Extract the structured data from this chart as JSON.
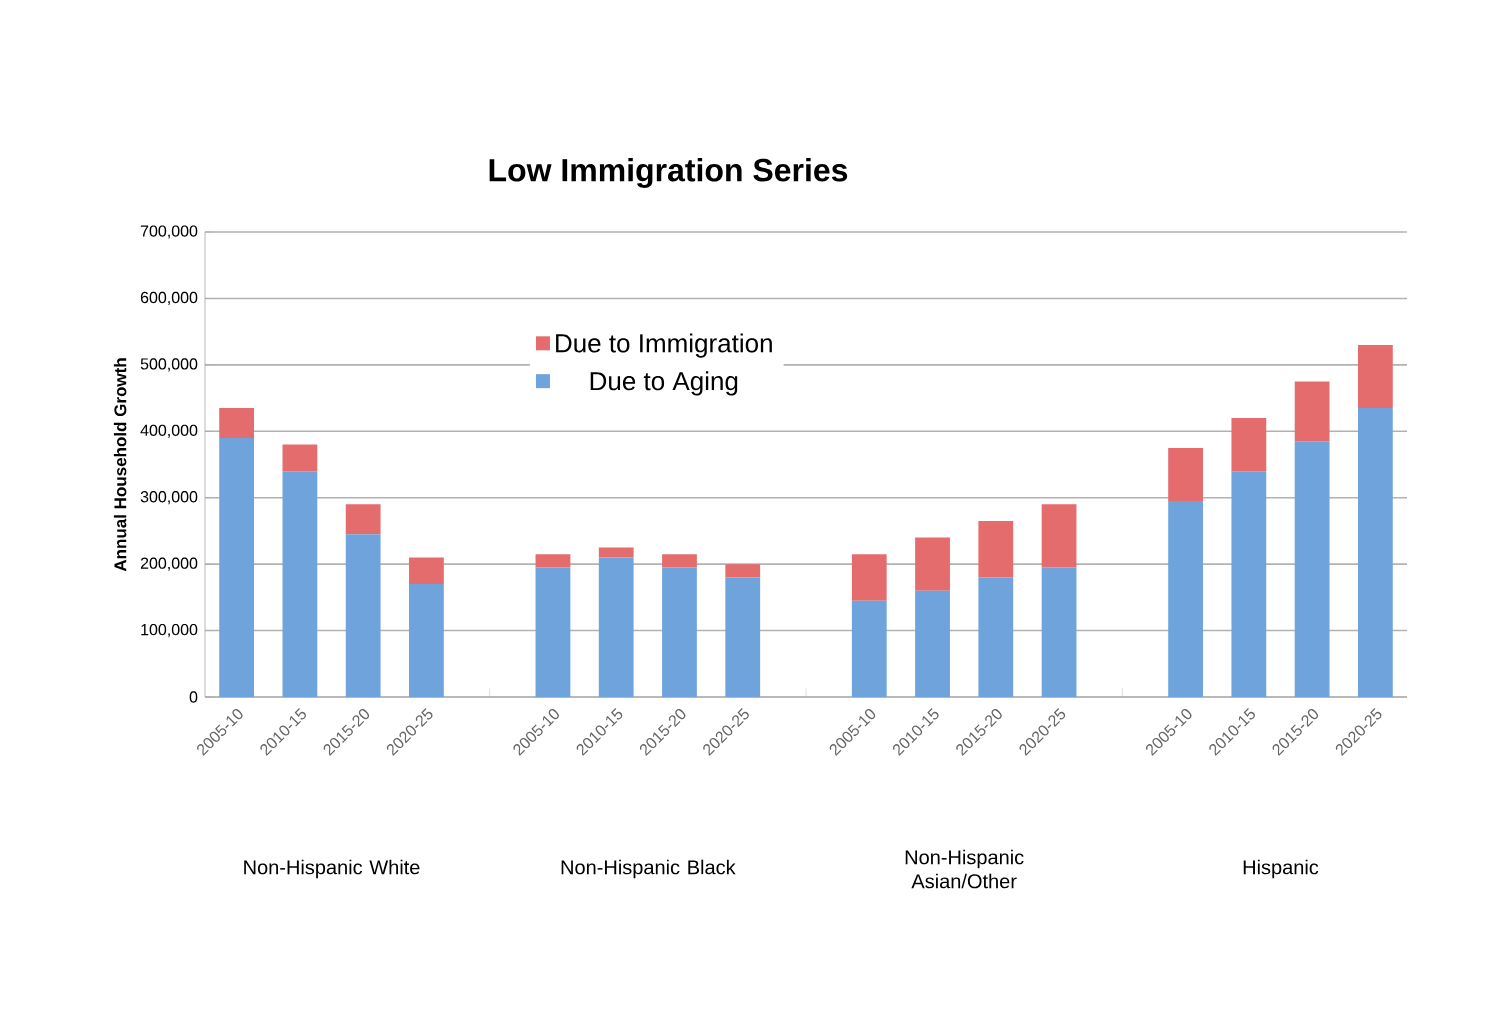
{
  "chart_data": {
    "type": "bar",
    "title": "Low Immigration Series",
    "ylabel": "Annual Household Growth",
    "categories": [
      "2005-10",
      "2010-15",
      "2015-20",
      "2020-25",
      null,
      "2005-10",
      "2010-15",
      "2015-20",
      "2020-25",
      null,
      "2005-10",
      "2010-15",
      "2015-20",
      "2020-25",
      null,
      "2005-10",
      "2010-15",
      "2015-20",
      "2020-25"
    ],
    "series": [
      {
        "name": "Due to Aging",
        "color": "#6fa3dc",
        "values": [
          390000,
          340000,
          245000,
          170000,
          null,
          195000,
          210000,
          195000,
          180000,
          null,
          145000,
          160000,
          180000,
          195000,
          null,
          295000,
          340000,
          385000,
          435000
        ]
      },
      {
        "name": "Due to Immigration",
        "color": "#e46c6c",
        "values": [
          45000,
          40000,
          45000,
          40000,
          null,
          20000,
          15000,
          20000,
          20000,
          null,
          70000,
          80000,
          85000,
          95000,
          null,
          80000,
          80000,
          90000,
          95000
        ]
      }
    ],
    "stacked": true,
    "ylim": [
      0,
      700000
    ],
    "yticks": [
      0,
      {
        "value": 100000,
        "label": "100,000"
      },
      {
        "value": 200000,
        "label": "200,000"
      },
      {
        "value": 300000,
        "label": "300,000"
      },
      {
        "value": 400000,
        "label": "400,000"
      },
      {
        "value": 500000,
        "label": "500,000"
      },
      {
        "value": 600000,
        "label": "600,000"
      },
      {
        "value": 700000,
        "label": "700,000"
      }
    ],
    "grid": "y",
    "legend": "top",
    "annotations": [
      "Non-Hispanic White",
      "Non-Hispanic Black",
      "Non-Hispanic Asian/Other",
      "Hispanic"
    ]
  }
}
